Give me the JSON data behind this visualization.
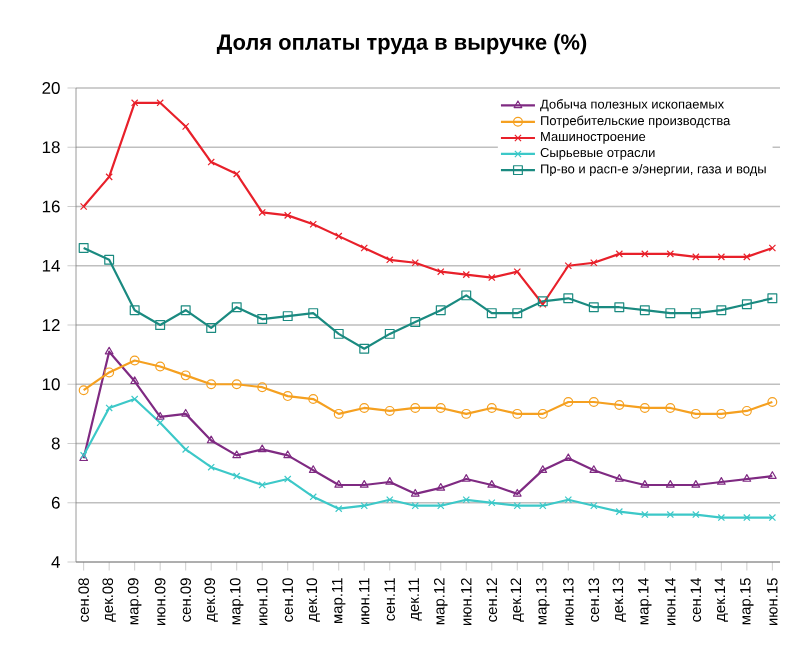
{
  "chart_data": {
    "type": "line",
    "title": "Доля оплаты труда в выручке (%)",
    "categories": [
      "сен.08",
      "дек.08",
      "мар.09",
      "июн.09",
      "сен.09",
      "дек.09",
      "мар.10",
      "июн.10",
      "сен.10",
      "дек.10",
      "мар.11",
      "июн.11",
      "сен.11",
      "дек.11",
      "мар.12",
      "июн.12",
      "сен.12",
      "дек.12",
      "мар.13",
      "июн.13",
      "сен.13",
      "дек.13",
      "мар.14",
      "июн.14",
      "сен.14",
      "дек.14",
      "мар.15",
      "июн.15"
    ],
    "series": [
      {
        "name": "Добыча полезных ископаемых",
        "color": "#7f2a82",
        "marker": "triangle",
        "values": [
          7.5,
          11.1,
          10.1,
          8.9,
          9.0,
          8.1,
          7.6,
          7.8,
          7.6,
          7.1,
          6.6,
          6.6,
          6.7,
          6.3,
          6.5,
          6.8,
          6.6,
          6.3,
          7.1,
          7.5,
          7.1,
          6.8,
          6.6,
          6.6,
          6.6,
          6.7,
          6.8,
          6.9
        ]
      },
      {
        "name": "Потребительские производства",
        "color": "#f5a020",
        "marker": "circle",
        "values": [
          9.8,
          10.4,
          10.8,
          10.6,
          10.3,
          10.0,
          10.0,
          9.9,
          9.6,
          9.5,
          9.0,
          9.2,
          9.1,
          9.2,
          9.2,
          9.0,
          9.2,
          9.0,
          9.0,
          9.4,
          9.4,
          9.3,
          9.2,
          9.2,
          9.0,
          9.0,
          9.1,
          9.4
        ]
      },
      {
        "name": "Машиностроение",
        "color": "#e8202a",
        "marker": "cross",
        "values": [
          16,
          17,
          19.5,
          19.5,
          18.7,
          17.5,
          17.1,
          15.8,
          15.7,
          15.4,
          15.0,
          14.6,
          14.2,
          14.1,
          13.8,
          13.7,
          13.6,
          13.8,
          12.7,
          14.0,
          14.1,
          14.4,
          14.4,
          14.4,
          14.3,
          14.3,
          14.3,
          14.6
        ]
      },
      {
        "name": "Сырьевые отрасли",
        "color": "#3cc8c8",
        "marker": "cross",
        "values": [
          7.6,
          9.2,
          9.5,
          8.7,
          7.8,
          7.2,
          6.9,
          6.6,
          6.8,
          6.2,
          5.8,
          5.9,
          6.1,
          5.9,
          5.9,
          6.1,
          6.0,
          5.9,
          5.9,
          6.1,
          5.9,
          5.7,
          5.6,
          5.6,
          5.6,
          5.5,
          5.5,
          5.5
        ]
      },
      {
        "name": "Пр-во и расп-е э/энергии, газа и воды",
        "color": "#1a8a80",
        "marker": "square",
        "values": [
          14.6,
          14.2,
          12.5,
          12.0,
          12.5,
          11.9,
          12.6,
          12.2,
          12.3,
          12.4,
          11.7,
          11.2,
          11.7,
          12.1,
          12.5,
          13.0,
          12.4,
          12.4,
          12.8,
          12.9,
          12.6,
          12.6,
          12.5,
          12.4,
          12.4,
          12.5,
          12.7,
          12.9
        ]
      }
    ],
    "ylim": [
      4,
      20
    ],
    "yticks": [
      4,
      6,
      8,
      10,
      12,
      14,
      16,
      18,
      20
    ],
    "grid": "y",
    "legend": "top right",
    "line_style": "solid"
  }
}
